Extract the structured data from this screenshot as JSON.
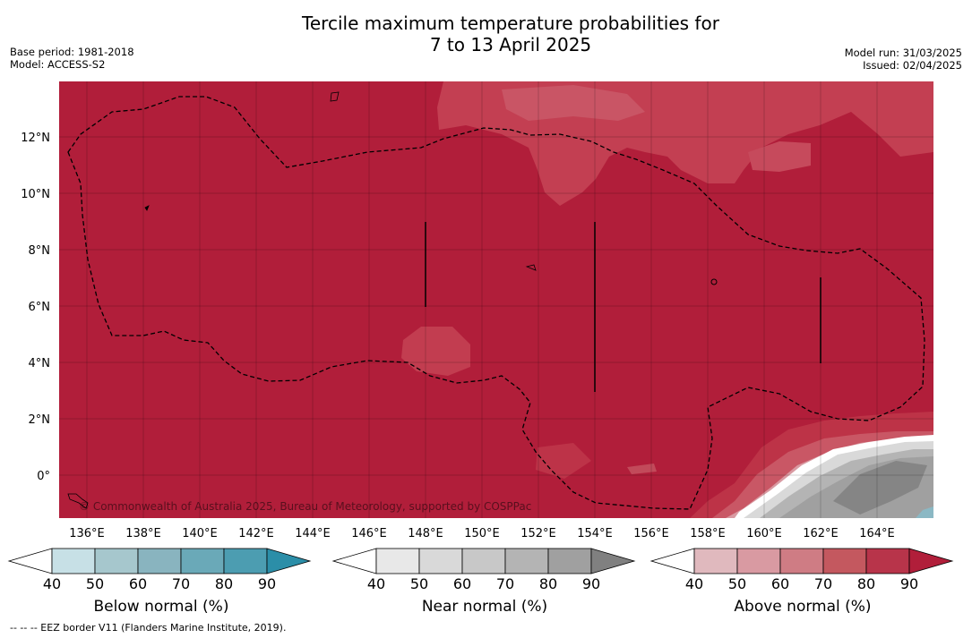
{
  "title": {
    "line1": "Tercile maximum temperature probabilities for",
    "line2": "7 to 13 April 2025"
  },
  "meta": {
    "base_period": "Base period: 1981-2018",
    "model": "Model: ACCESS-S2",
    "model_run": "Model run: 31/03/2025",
    "issued": "Issued: 02/04/2025"
  },
  "map": {
    "lon_labels": [
      "136°E",
      "138°E",
      "140°E",
      "142°E",
      "144°E",
      "146°E",
      "148°E",
      "150°E",
      "152°E",
      "154°E",
      "156°E",
      "158°E",
      "160°E",
      "162°E",
      "164°E"
    ],
    "lat_labels": [
      "12°N",
      "10°N",
      "8°N",
      "6°N",
      "4°N",
      "2°N",
      "0°"
    ],
    "copyright": "© Commonwealth of Australia 2025, Bureau of Meteorology, supported by COSPPac",
    "base_color": "#b11e3a"
  },
  "colorbars": [
    {
      "label": "Below normal (%)",
      "ticks": [
        "40",
        "50",
        "60",
        "70",
        "80",
        "90"
      ],
      "colors": [
        "#ffffff",
        "#c7e0e6",
        "#a6c7cd",
        "#89b4bf",
        "#6aa9b8",
        "#4c9db1",
        "#2b8ea8"
      ]
    },
    {
      "label": "Near normal (%)",
      "ticks": [
        "40",
        "50",
        "60",
        "70",
        "80",
        "90"
      ],
      "colors": [
        "#ffffff",
        "#e8e8e8",
        "#d9d9d9",
        "#c8c8c8",
        "#b4b4b4",
        "#a0a0a0",
        "#808080"
      ]
    },
    {
      "label": "Above normal (%)",
      "ticks": [
        "40",
        "50",
        "60",
        "70",
        "80",
        "90"
      ],
      "colors": [
        "#ffffff",
        "#e0b9be",
        "#d99aa2",
        "#cf7c84",
        "#c4585f",
        "#b8344a",
        "#b11e3a"
      ]
    }
  ],
  "footnote": "--  --  -- EEZ border V11 (Flanders Marine Institute, 2019)."
}
